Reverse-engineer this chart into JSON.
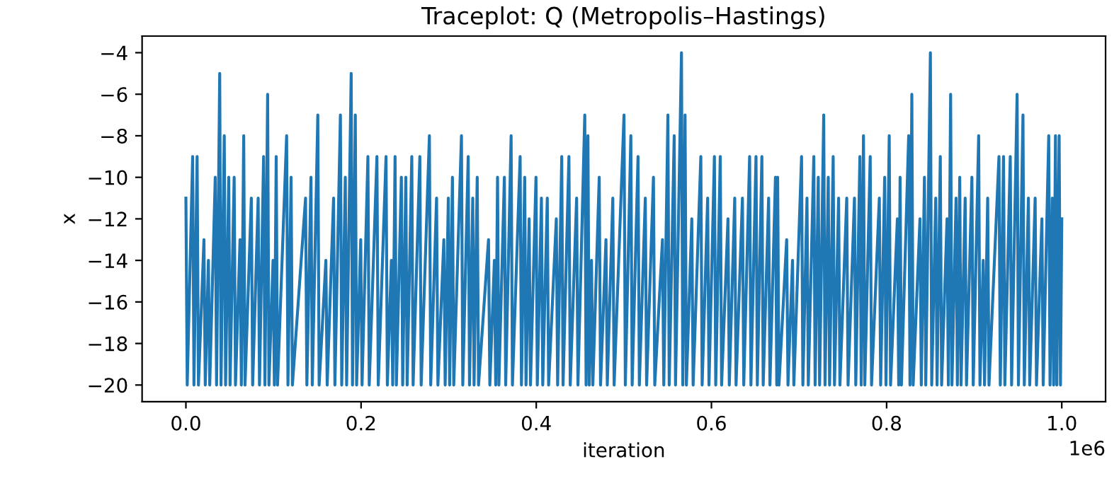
{
  "chart_data": {
    "type": "line",
    "title": "Traceplot: Q (Metropolis–Hastings)",
    "xlabel": "iteration",
    "ylabel": "x",
    "annotations": [
      "1e6"
    ],
    "xlim": [
      -0.05,
      1.05
    ],
    "ylim": [
      -20.8,
      -3.2
    ],
    "xticks": [
      {
        "value": 0,
        "label": "0.0"
      },
      0.2,
      0.4,
      0.6,
      0.8,
      {
        "value": 1,
        "label": "1.0"
      }
    ],
    "yticks": [
      -20,
      -18,
      -16,
      -14,
      -12,
      -10,
      -8,
      -6,
      -4
    ],
    "grid": false,
    "legend": false,
    "marker": "none",
    "line_style": "solid",
    "series": [
      {
        "color": "#1f77b4",
        "x": [
          0,
          0.0015,
          0.0077,
          0.0092,
          0.0128,
          0.0143,
          0.0206,
          0.0221,
          0.0257,
          0.0272,
          0.0335,
          0.035,
          0.0386,
          0.0401,
          0.0438,
          0.0453,
          0.0489,
          0.0504,
          0.0551,
          0.0566,
          0.0618,
          0.0633,
          0.066,
          0.0675,
          0.0747,
          0.0762,
          0.0825,
          0.084,
          0.0887,
          0.0902,
          0.0933,
          0.0948,
          0.0995,
          0.101,
          0.1031,
          0.1046,
          0.115,
          0.1165,
          0.1201,
          0.1216,
          0.1366,
          0.1381,
          0.1428,
          0.1443,
          0.1506,
          0.1521,
          0.1598,
          0.1613,
          0.1686,
          0.1701,
          0.1764,
          0.1779,
          0.182,
          0.1835,
          0.1887,
          0.1902,
          0.1934,
          0.1949,
          0.1996,
          0.2011,
          0.2078,
          0.2093,
          0.2181,
          0.2196,
          0.2285,
          0.23,
          0.2346,
          0.2361,
          0.2388,
          0.2403,
          0.246,
          0.2475,
          0.2511,
          0.2526,
          0.2579,
          0.2594,
          0.2671,
          0.2686,
          0.278,
          0.2795,
          0.2862,
          0.2877,
          0.2945,
          0.296,
          0.2996,
          0.3011,
          0.3043,
          0.3058,
          0.3146,
          0.3161,
          0.3223,
          0.3238,
          0.3275,
          0.329,
          0.3326,
          0.3341,
          0.3455,
          0.347,
          0.3522,
          0.3537,
          0.3558,
          0.3573,
          0.3636,
          0.3651,
          0.3713,
          0.3728,
          0.3816,
          0.3831,
          0.3868,
          0.3883,
          0.3919,
          0.3934,
          0.3997,
          0.4012,
          0.4059,
          0.4074,
          0.4126,
          0.4141,
          0.4229,
          0.4244,
          0.4291,
          0.4306,
          0.4373,
          0.4388,
          0.4461,
          0.4476,
          0.4554,
          0.4569,
          0.459,
          0.4605,
          0.4631,
          0.4646,
          0.4719,
          0.4734,
          0.4796,
          0.4811,
          0.4874,
          0.4889,
          0.5002,
          0.5017,
          0.508,
          0.5095,
          0.5162,
          0.5177,
          0.5245,
          0.526,
          0.5338,
          0.5353,
          0.5441,
          0.5456,
          0.5503,
          0.5518,
          0.5575,
          0.559,
          0.5658,
          0.5673,
          0.5699,
          0.5714,
          0.5776,
          0.5791,
          0.5879,
          0.5894,
          0.5957,
          0.5972,
          0.6034,
          0.6049,
          0.6101,
          0.6116,
          0.6189,
          0.6204,
          0.6266,
          0.6281,
          0.6354,
          0.6369,
          0.6436,
          0.6451,
          0.6509,
          0.6524,
          0.6576,
          0.6591,
          0.6653,
          0.6668,
          0.6731,
          0.6746,
          0.6756,
          0.6771,
          0.6859,
          0.6874,
          0.6926,
          0.6941,
          0.7029,
          0.7044,
          0.7091,
          0.7106,
          0.7169,
          0.7184,
          0.722,
          0.7235,
          0.7282,
          0.7297,
          0.7334,
          0.7349,
          0.739,
          0.7405,
          0.7452,
          0.7467,
          0.7545,
          0.756,
          0.7633,
          0.7648,
          0.7695,
          0.771,
          0.7736,
          0.7751,
          0.7813,
          0.7828,
          0.7917,
          0.7932,
          0.7978,
          0.7993,
          0.803,
          0.8045,
          0.8123,
          0.8138,
          0.8154,
          0.8169,
          0.8252,
          0.8267,
          0.8288,
          0.8303,
          0.8381,
          0.8396,
          0.8432,
          0.8447,
          0.85,
          0.8515,
          0.8561,
          0.8576,
          0.8613,
          0.8628,
          0.869,
          0.8705,
          0.8731,
          0.8746,
          0.8793,
          0.8808,
          0.8835,
          0.885,
          0.8897,
          0.8912,
          0.8974,
          0.8989,
          0.9051,
          0.9066,
          0.9103,
          0.9118,
          0.9154,
          0.9169,
          0.9283,
          0.9298,
          0.9335,
          0.935,
          0.9412,
          0.9427,
          0.949,
          0.9505,
          0.9557,
          0.9572,
          0.9619,
          0.9634,
          0.9696,
          0.9711,
          0.9773,
          0.9788,
          0.9851,
          0.9866,
          0.9892,
          0.9907,
          0.9928,
          0.9943,
          0.997,
          0.9985,
          1.0
        ],
        "values": [
          -11,
          -20,
          -9,
          -20,
          -9,
          -20,
          -13,
          -20,
          -14,
          -20,
          -10,
          -20,
          -5,
          -20,
          -8,
          -20,
          -10,
          -20,
          -10,
          -20,
          -13,
          -20,
          -8,
          -20,
          -11,
          -20,
          -11,
          -20,
          -9,
          -20,
          -6,
          -20,
          -14,
          -20,
          -9,
          -20,
          -8,
          -20,
          -10,
          -20,
          -11,
          -20,
          -10,
          -20,
          -7,
          -20,
          -14,
          -20,
          -11,
          -20,
          -7,
          -20,
          -10,
          -20,
          -5,
          -20,
          -7,
          -20,
          -13,
          -20,
          -9,
          -20,
          -9,
          -20,
          -9,
          -20,
          -14,
          -20,
          -9,
          -20,
          -10,
          -20,
          -10,
          -20,
          -9,
          -20,
          -9,
          -20,
          -8,
          -20,
          -11,
          -20,
          -13,
          -20,
          -11,
          -20,
          -10,
          -20,
          -8,
          -20,
          -9,
          -20,
          -11,
          -20,
          -10,
          -20,
          -13,
          -20,
          -14,
          -20,
          -10,
          -20,
          -10,
          -20,
          -8,
          -20,
          -9,
          -20,
          -10,
          -20,
          -12,
          -20,
          -10,
          -20,
          -11,
          -20,
          -11,
          -20,
          -12,
          -20,
          -9,
          -20,
          -9,
          -20,
          -11,
          -20,
          -7,
          -20,
          -8,
          -20,
          -14,
          -20,
          -10,
          -20,
          -13,
          -20,
          -11,
          -20,
          -7,
          -20,
          -8,
          -20,
          -9,
          -20,
          -11,
          -20,
          -10,
          -20,
          -13,
          -20,
          -7,
          -20,
          -8,
          -20,
          -4,
          -20,
          -7,
          -20,
          -12,
          -20,
          -9,
          -20,
          -11,
          -20,
          -9,
          -20,
          -9,
          -20,
          -12,
          -20,
          -11,
          -20,
          -11,
          -20,
          -9,
          -20,
          -9,
          -20,
          -9,
          -20,
          -11,
          -20,
          -10,
          -20,
          -10,
          -20,
          -13,
          -20,
          -14,
          -20,
          -9,
          -20,
          -11,
          -20,
          -9,
          -20,
          -10,
          -20,
          -7,
          -20,
          -10,
          -20,
          -9,
          -20,
          -11,
          -20,
          -11,
          -20,
          -11,
          -20,
          -9,
          -20,
          -8,
          -20,
          -9,
          -20,
          -11,
          -20,
          -10,
          -20,
          -8,
          -20,
          -12,
          -20,
          -10,
          -20,
          -8,
          -20,
          -6,
          -20,
          -12,
          -20,
          -10,
          -20,
          -4,
          -20,
          -11,
          -20,
          -9,
          -20,
          -12,
          -20,
          -6,
          -20,
          -11,
          -20,
          -10,
          -20,
          -11,
          -20,
          -10,
          -20,
          -8,
          -20,
          -14,
          -20,
          -11,
          -20,
          -9,
          -20,
          -9,
          -20,
          -9,
          -20,
          -6,
          -20,
          -7,
          -20,
          -11,
          -20,
          -11,
          -20,
          -12,
          -20,
          -8,
          -20,
          -11,
          -20,
          -8,
          -20,
          -8,
          -20,
          -12
        ]
      }
    ]
  }
}
